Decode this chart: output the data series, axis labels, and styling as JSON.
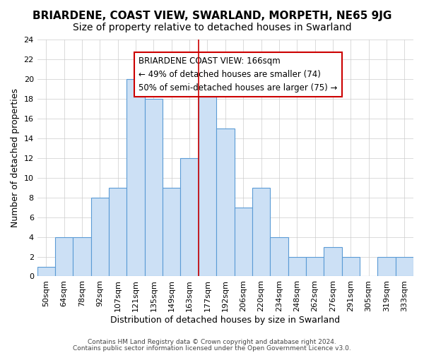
{
  "title": "BRIARDENE, COAST VIEW, SWARLAND, MORPETH, NE65 9JG",
  "subtitle": "Size of property relative to detached houses in Swarland",
  "xlabel": "Distribution of detached houses by size in Swarland",
  "ylabel": "Number of detached properties",
  "bar_labels": [
    "50sqm",
    "64sqm",
    "78sqm",
    "92sqm",
    "107sqm",
    "121sqm",
    "135sqm",
    "149sqm",
    "163sqm",
    "177sqm",
    "192sqm",
    "206sqm",
    "220sqm",
    "234sqm",
    "248sqm",
    "262sqm",
    "276sqm",
    "291sqm",
    "305sqm",
    "319sqm",
    "333sqm"
  ],
  "bar_values": [
    1,
    4,
    4,
    8,
    9,
    20,
    18,
    9,
    12,
    20,
    15,
    7,
    9,
    4,
    2,
    2,
    3,
    2,
    0,
    2,
    2
  ],
  "bar_color": "#cce0f5",
  "bar_edgecolor": "#5b9bd5",
  "ylim": [
    0,
    24
  ],
  "yticks": [
    0,
    2,
    4,
    6,
    8,
    10,
    12,
    14,
    16,
    18,
    20,
    22,
    24
  ],
  "vline_x": 8.5,
  "vline_color": "#cc0000",
  "annotation_title": "BRIARDENE COAST VIEW: 166sqm",
  "annotation_line1": "← 49% of detached houses are smaller (74)",
  "annotation_line2": "50% of semi-detached houses are larger (75) →",
  "annotation_box_edgecolor": "#cc0000",
  "annotation_box_facecolor": "#ffffff",
  "footer1": "Contains HM Land Registry data © Crown copyright and database right 2024.",
  "footer2": "Contains public sector information licensed under the Open Government Licence v3.0.",
  "background_color": "#ffffff",
  "grid_color": "#cccccc",
  "title_fontsize": 11,
  "subtitle_fontsize": 10,
  "axis_label_fontsize": 9,
  "tick_fontsize": 8,
  "annotation_fontsize": 8.5,
  "footer_fontsize": 6.5
}
